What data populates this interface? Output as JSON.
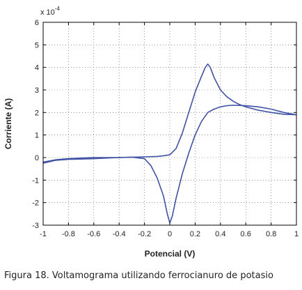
{
  "caption": "Figura 18. Voltamograma utilizando ferrocianuro de potasio",
  "chart_data": {
    "type": "line",
    "xlabel": "Potencial (V)",
    "ylabel": "Corriente  (A)",
    "y_multiplier_label": "x 10",
    "y_multiplier_exponent": "-4",
    "xlim": [
      -1,
      1
    ],
    "ylim": [
      -3,
      6
    ],
    "x_ticks": [
      -1,
      -0.8,
      -0.6,
      -0.4,
      -0.2,
      0,
      0.2,
      0.4,
      0.6,
      0.8,
      1
    ],
    "x_tick_labels": [
      "-1",
      "-0.8",
      "-0.6",
      "-0.4",
      "-0.2",
      "0",
      "0.2",
      "0.4",
      "0.6",
      "0.8",
      "1"
    ],
    "y_ticks": [
      -3,
      -2,
      -1,
      0,
      1,
      2,
      3,
      4,
      5,
      6
    ],
    "y_tick_labels": [
      "-3",
      "-2",
      "-1",
      "0",
      "1",
      "2",
      "3",
      "4",
      "5",
      "6"
    ],
    "grid": true,
    "line_color": "#3f52a3",
    "series": [
      {
        "x": [
          -1.0,
          -0.9,
          -0.8,
          -0.6,
          -0.4,
          -0.2,
          -0.1,
          -0.05,
          0.0,
          0.05,
          0.1,
          0.15,
          0.2,
          0.25,
          0.28,
          0.3,
          0.32,
          0.35,
          0.4,
          0.45,
          0.5,
          0.55,
          0.6,
          0.7,
          0.8,
          0.9,
          1.0
        ],
        "y": [
          -0.2,
          -0.1,
          -0.05,
          0.0,
          0.0,
          0.03,
          0.05,
          0.08,
          0.12,
          0.4,
          1.1,
          2.0,
          2.9,
          3.6,
          4.0,
          4.15,
          4.0,
          3.55,
          3.0,
          2.7,
          2.5,
          2.35,
          2.25,
          2.1,
          2.0,
          1.92,
          1.9
        ]
      },
      {
        "x": [
          1.0,
          0.9,
          0.8,
          0.7,
          0.6,
          0.5,
          0.45,
          0.4,
          0.35,
          0.3,
          0.25,
          0.2,
          0.15,
          0.1,
          0.05,
          0.02,
          0.0,
          -0.02,
          -0.05,
          -0.1,
          -0.15,
          -0.2,
          -0.3,
          -0.4,
          -0.6,
          -0.8,
          -0.9,
          -1.0
        ],
        "y": [
          1.9,
          2.0,
          2.15,
          2.25,
          2.3,
          2.32,
          2.3,
          2.25,
          2.15,
          2.0,
          1.6,
          1.0,
          0.2,
          -0.7,
          -1.8,
          -2.6,
          -2.9,
          -2.5,
          -1.7,
          -0.9,
          -0.35,
          -0.05,
          0.02,
          0.0,
          -0.05,
          -0.08,
          -0.12,
          -0.25
        ]
      }
    ]
  }
}
